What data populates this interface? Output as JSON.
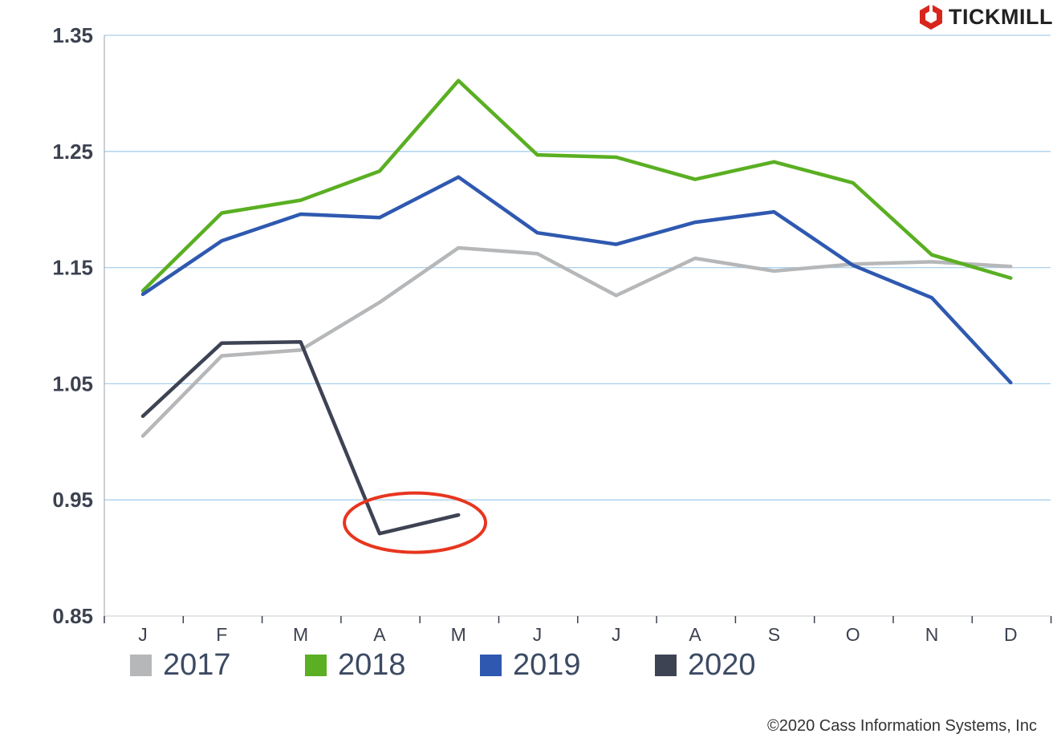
{
  "brand": {
    "name": "TICKMILL",
    "logo_icon": "tickmill-hexagon-logo-icon",
    "logo_color": "#d9261c"
  },
  "copyright": "©2020 Cass Information Systems, Inc",
  "chart_data": {
    "type": "line",
    "title": "",
    "xlabel": "",
    "ylabel": "",
    "categories": [
      "J",
      "F",
      "M",
      "A",
      "M",
      "J",
      "J",
      "A",
      "S",
      "O",
      "N",
      "D"
    ],
    "y_ticks": [
      "1.35",
      "1.25",
      "1.15",
      "1.05",
      "0.95",
      "0.85"
    ],
    "ylim": [
      0.85,
      1.35
    ],
    "grid": "horizontal",
    "legend_position": "bottom",
    "series": [
      {
        "name": "2017",
        "color": "#b5b7b9",
        "values": [
          1.005,
          1.074,
          1.079,
          1.12,
          1.167,
          1.162,
          1.126,
          1.158,
          1.147,
          1.153,
          1.155,
          1.151
        ]
      },
      {
        "name": "2018",
        "color": "#5aaf22",
        "values": [
          1.13,
          1.197,
          1.208,
          1.233,
          1.311,
          1.247,
          1.245,
          1.226,
          1.241,
          1.223,
          1.161,
          1.141
        ]
      },
      {
        "name": "2019",
        "color": "#2f59b0",
        "values": [
          1.127,
          1.173,
          1.196,
          1.193,
          1.228,
          1.18,
          1.17,
          1.189,
          1.198,
          1.152,
          1.124,
          1.051
        ]
      },
      {
        "name": "2020",
        "color": "#3e4354",
        "values": [
          1.022,
          1.085,
          1.086,
          0.921,
          0.937,
          null,
          null,
          null,
          null,
          null,
          null,
          null
        ]
      }
    ],
    "annotations": [
      {
        "type": "ellipse-highlight",
        "color": "#e8351f",
        "series": "2020",
        "x_range": [
          "A",
          "M"
        ]
      }
    ]
  }
}
